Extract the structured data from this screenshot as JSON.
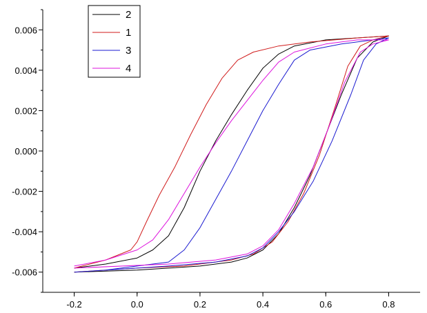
{
  "chart_data": {
    "type": "line",
    "title": "",
    "xlabel": "",
    "ylabel": "",
    "xlim": [
      -0.3,
      0.9
    ],
    "ylim": [
      -0.007,
      0.007
    ],
    "grid": false,
    "legend_position": "top-left",
    "x_ticks": [
      {
        "value": -0.2,
        "label": "-0.2"
      },
      {
        "value": 0.0,
        "label": "0.0"
      },
      {
        "value": 0.2,
        "label": "0.2"
      },
      {
        "value": 0.4,
        "label": "0.4"
      },
      {
        "value": 0.6,
        "label": "0.6"
      },
      {
        "value": 0.8,
        "label": "0.8"
      }
    ],
    "y_ticks": [
      {
        "value": -0.006,
        "label": "-0.006"
      },
      {
        "value": -0.004,
        "label": "-0.004"
      },
      {
        "value": -0.002,
        "label": "-0.002"
      },
      {
        "value": 0.0,
        "label": "0.000"
      },
      {
        "value": 0.002,
        "label": "0.002"
      },
      {
        "value": 0.004,
        "label": "0.004"
      },
      {
        "value": 0.006,
        "label": "0.006"
      }
    ],
    "series": [
      {
        "name": "2",
        "color": "#000000",
        "points": [
          [
            -0.2,
            -0.0058
          ],
          [
            -0.1,
            -0.0056
          ],
          [
            0.0,
            -0.0053
          ],
          [
            0.05,
            -0.0049
          ],
          [
            0.1,
            -0.0042
          ],
          [
            0.15,
            -0.0028
          ],
          [
            0.2,
            -0.001
          ],
          [
            0.25,
            0.0005
          ],
          [
            0.3,
            0.0018
          ],
          [
            0.35,
            0.003
          ],
          [
            0.4,
            0.0041
          ],
          [
            0.45,
            0.0048
          ],
          [
            0.5,
            0.0052
          ],
          [
            0.6,
            0.0055
          ],
          [
            0.7,
            0.0056
          ],
          [
            0.8,
            0.0057
          ],
          [
            0.75,
            0.0054
          ],
          [
            0.7,
            0.0046
          ],
          [
            0.65,
            0.0028
          ],
          [
            0.6,
            0.0008
          ],
          [
            0.55,
            -0.0012
          ],
          [
            0.5,
            -0.0028
          ],
          [
            0.45,
            -0.0041
          ],
          [
            0.4,
            -0.0049
          ],
          [
            0.35,
            -0.0053
          ],
          [
            0.3,
            -0.0055
          ],
          [
            0.2,
            -0.0057
          ],
          [
            0.1,
            -0.0058
          ],
          [
            0.0,
            -0.0059
          ],
          [
            -0.2,
            -0.006
          ]
        ]
      },
      {
        "name": "1",
        "color": "#d01a1a",
        "points": [
          [
            -0.2,
            -0.0058
          ],
          [
            -0.1,
            -0.0054
          ],
          [
            -0.02,
            -0.0049
          ],
          [
            0.0,
            -0.0045
          ],
          [
            0.03,
            -0.0035
          ],
          [
            0.07,
            -0.0022
          ],
          [
            0.12,
            -0.0008
          ],
          [
            0.17,
            0.0008
          ],
          [
            0.22,
            0.0023
          ],
          [
            0.27,
            0.0036
          ],
          [
            0.32,
            0.0045
          ],
          [
            0.37,
            0.0049
          ],
          [
            0.45,
            0.0052
          ],
          [
            0.55,
            0.0054
          ],
          [
            0.7,
            0.0056
          ],
          [
            0.8,
            0.0057
          ],
          [
            0.75,
            0.0055
          ],
          [
            0.71,
            0.0052
          ],
          [
            0.67,
            0.0042
          ],
          [
            0.63,
            0.0022
          ],
          [
            0.58,
            -0.0002
          ],
          [
            0.53,
            -0.0021
          ],
          [
            0.48,
            -0.0035
          ],
          [
            0.43,
            -0.0045
          ],
          [
            0.37,
            -0.0051
          ],
          [
            0.3,
            -0.0054
          ],
          [
            0.15,
            -0.0057
          ],
          [
            0.0,
            -0.0058
          ],
          [
            -0.2,
            -0.006
          ]
        ]
      },
      {
        "name": "3",
        "color": "#1a1ad0",
        "points": [
          [
            -0.2,
            -0.006
          ],
          [
            -0.1,
            -0.0059
          ],
          [
            0.0,
            -0.0057
          ],
          [
            0.1,
            -0.0055
          ],
          [
            0.15,
            -0.0049
          ],
          [
            0.2,
            -0.0038
          ],
          [
            0.25,
            -0.0024
          ],
          [
            0.3,
            -0.001
          ],
          [
            0.35,
            0.0005
          ],
          [
            0.4,
            0.002
          ],
          [
            0.45,
            0.0033
          ],
          [
            0.5,
            0.0045
          ],
          [
            0.55,
            0.005
          ],
          [
            0.65,
            0.0053
          ],
          [
            0.75,
            0.0055
          ],
          [
            0.8,
            0.0056
          ],
          [
            0.76,
            0.0053
          ],
          [
            0.72,
            0.0045
          ],
          [
            0.68,
            0.0028
          ],
          [
            0.62,
            0.0005
          ],
          [
            0.56,
            -0.0015
          ],
          [
            0.5,
            -0.003
          ],
          [
            0.45,
            -0.004
          ],
          [
            0.4,
            -0.0048
          ],
          [
            0.35,
            -0.0052
          ],
          [
            0.25,
            -0.0055
          ],
          [
            0.1,
            -0.0057
          ],
          [
            -0.2,
            -0.006
          ]
        ]
      },
      {
        "name": "4",
        "color": "#dd11dd",
        "points": [
          [
            -0.2,
            -0.0057
          ],
          [
            -0.1,
            -0.0054
          ],
          [
            0.0,
            -0.0049
          ],
          [
            0.05,
            -0.0044
          ],
          [
            0.1,
            -0.0034
          ],
          [
            0.15,
            -0.0021
          ],
          [
            0.2,
            -0.0008
          ],
          [
            0.25,
            0.0004
          ],
          [
            0.3,
            0.0015
          ],
          [
            0.35,
            0.0025
          ],
          [
            0.4,
            0.0035
          ],
          [
            0.45,
            0.0044
          ],
          [
            0.5,
            0.0049
          ],
          [
            0.6,
            0.0053
          ],
          [
            0.7,
            0.0055
          ],
          [
            0.8,
            0.0055
          ],
          [
            0.75,
            0.0053
          ],
          [
            0.71,
            0.0049
          ],
          [
            0.66,
            0.0034
          ],
          [
            0.61,
            0.0012
          ],
          [
            0.56,
            -0.0008
          ],
          [
            0.5,
            -0.0026
          ],
          [
            0.45,
            -0.0039
          ],
          [
            0.4,
            -0.0047
          ],
          [
            0.35,
            -0.0051
          ],
          [
            0.25,
            -0.0054
          ],
          [
            0.1,
            -0.0056
          ],
          [
            -0.2,
            -0.0058
          ]
        ]
      }
    ]
  }
}
